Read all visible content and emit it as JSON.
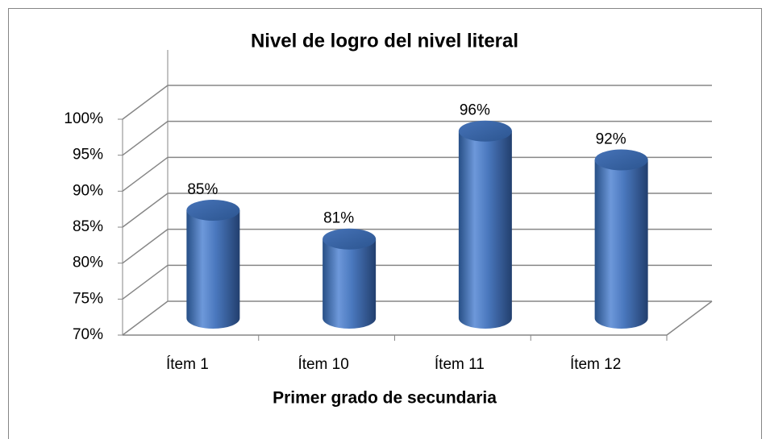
{
  "chart_data": {
    "type": "bar",
    "title": "Nivel de logro del nivel literal",
    "x_label": "Primer grado de secundaria",
    "categories": [
      "Ítem 1",
      "Ítem 10",
      "Ítem 11",
      "Ítem 12"
    ],
    "values": [
      85,
      81,
      96,
      92
    ],
    "value_labels": [
      "85%",
      "81%",
      "96%",
      "92%"
    ],
    "color": "#4f81bd",
    "ylim": [
      70,
      100
    ],
    "yticks": [
      {
        "value": 70,
        "label": "70%"
      },
      {
        "value": 75,
        "label": "75%"
      },
      {
        "value": 80,
        "label": "80%"
      },
      {
        "value": 85,
        "label": "85%"
      },
      {
        "value": 90,
        "label": "90%"
      },
      {
        "value": 95,
        "label": "95%"
      },
      {
        "value": 100,
        "label": "100%"
      }
    ],
    "grid": true
  }
}
